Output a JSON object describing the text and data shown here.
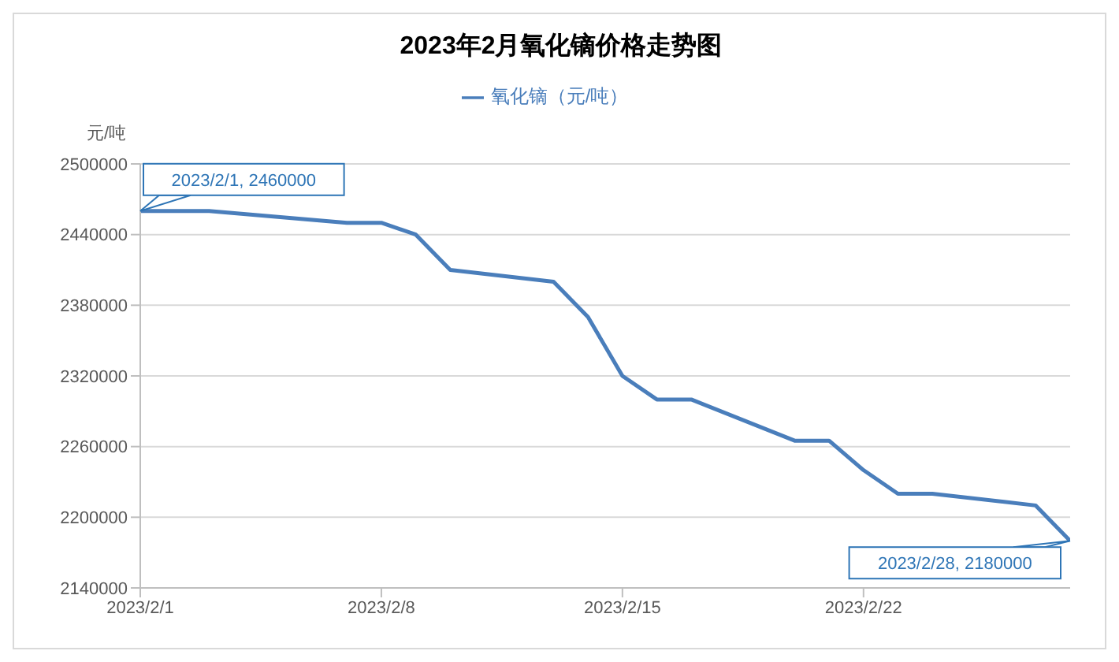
{
  "chart_data": {
    "type": "line",
    "title": "2023年2月氧化镝价格走势图",
    "ylabel": "元/吨",
    "x": [
      "2023-02-01",
      "2023-02-02",
      "2023-02-03",
      "2023-02-07",
      "2023-02-08",
      "2023-02-09",
      "2023-02-10",
      "2023-02-13",
      "2023-02-14",
      "2023-02-15",
      "2023-02-16",
      "2023-02-17",
      "2023-02-20",
      "2023-02-21",
      "2023-02-22",
      "2023-02-23",
      "2023-02-24",
      "2023-02-27",
      "2023-02-28"
    ],
    "series": [
      {
        "name": "氧化镝（元/吨）",
        "color": "#4a7ebb",
        "values": [
          2460000,
          2460000,
          2460000,
          2450000,
          2450000,
          2440000,
          2410000,
          2400000,
          2370000,
          2320000,
          2300000,
          2300000,
          2265000,
          2265000,
          2240000,
          2220000,
          2220000,
          2210000,
          2180000
        ]
      }
    ],
    "xlim": [
      "2023-02-01",
      "2023-02-28"
    ],
    "xticks": [
      {
        "value": "2023-02-01",
        "label": "2023/2/1"
      },
      {
        "value": "2023-02-08",
        "label": "2023/2/8"
      },
      {
        "value": "2023-02-15",
        "label": "2023/2/15"
      },
      {
        "value": "2023-02-22",
        "label": "2023/2/22"
      }
    ],
    "ylim": [
      2140000,
      2500000
    ],
    "yticks": [
      2140000,
      2200000,
      2260000,
      2320000,
      2380000,
      2440000,
      2500000
    ],
    "grid": "y",
    "legend": "top",
    "marker": "none",
    "line_style": "solid",
    "annotations": [
      {
        "text": "2023/2/1, 2460000",
        "x": "2023-02-01",
        "y": 2460000
      },
      {
        "text": "2023/2/28, 2180000",
        "x": "2023-02-28",
        "y": 2180000
      }
    ]
  }
}
